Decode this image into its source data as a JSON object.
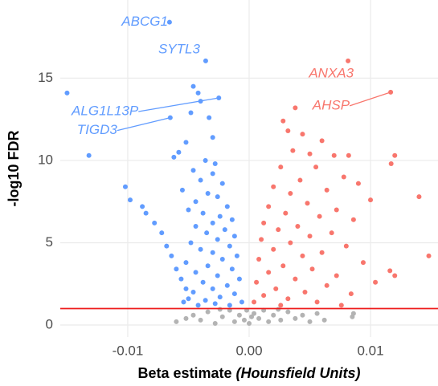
{
  "chart_data": {
    "type": "scatter",
    "xlabel": "Beta estimate",
    "xlabel_unit": "(Hounsfield Units)",
    "ylabel": "-log10 FDR",
    "xlim": [
      -0.01556,
      0.01556
    ],
    "ylim": [
      -0.73,
      19.75
    ],
    "xticks": [
      -0.01,
      {
        "value": 0,
        "label": "0.00"
      },
      0.01
    ],
    "yticks": [
      0,
      5,
      10,
      15
    ],
    "grid": true,
    "hline": 1,
    "hline_color": "#ee1c1c",
    "series": [
      {
        "color": "#619cff",
        "labels": [
          "ABCG1",
          "SYTL3",
          "ALG1L13P",
          "TIGD3"
        ],
        "x": [
          -0.00656,
          -0.00358,
          -0.0025,
          -0.0065
        ],
        "values": [
          18.4,
          16.05,
          13.8,
          12.6
        ]
      },
      {
        "color": "#f8766d",
        "labels": [
          "ANXA3",
          "AHSP"
        ],
        "x": [
          0.00815,
          0.01166
        ],
        "values": [
          16.05,
          14.15
        ]
      },
      {
        "color": "#619cff",
        "x": [
          -0.015,
          -0.0132,
          -0.0102,
          -0.0098,
          -0.0088,
          -0.0085,
          -0.0078,
          -0.0072,
          -0.0068,
          -0.0064,
          -0.006,
          -0.0056,
          -0.0052,
          -0.005,
          -0.0046,
          -0.0042,
          -0.004,
          -0.0048,
          -0.0033,
          -0.003,
          -0.0052,
          -0.0058,
          -0.0062,
          -0.0036,
          -0.0028,
          -0.003,
          -0.0046,
          -0.004,
          -0.0022,
          -0.0055,
          -0.0034,
          -0.0026,
          -0.0044,
          -0.0018,
          -0.005,
          -0.0038,
          -0.0024,
          -0.0014,
          -0.003,
          -0.0044,
          -0.002,
          -0.0035,
          -0.0012,
          -0.0026,
          -0.0048,
          -0.0016,
          -0.004,
          -0.003,
          -0.001,
          -0.0022,
          -0.0052,
          -0.0034,
          -0.0014,
          -0.0044,
          -0.0026,
          -0.0008,
          -0.0038,
          -0.0018,
          -0.003,
          -0.0046,
          -0.0012,
          -0.0024,
          -0.0036,
          -0.0006,
          -0.0016,
          -0.0042,
          -0.0028,
          -0.0054
        ],
        "values": [
          14.1,
          10.3,
          8.4,
          7.6,
          7.2,
          6.8,
          6.2,
          5.6,
          4.8,
          4.2,
          3.4,
          2.8,
          2.2,
          1.6,
          14.5,
          14.1,
          13.6,
          12.9,
          12.6,
          11.4,
          11.1,
          10.5,
          10.2,
          10.0,
          9.8,
          9.2,
          9.4,
          8.8,
          8.6,
          8.2,
          8.0,
          7.8,
          7.5,
          7.2,
          7.0,
          6.8,
          6.6,
          6.4,
          6.2,
          6.0,
          5.8,
          5.6,
          5.4,
          5.2,
          5.0,
          4.8,
          4.6,
          4.4,
          4.2,
          4.0,
          3.8,
          3.6,
          3.4,
          3.2,
          3.0,
          2.8,
          2.6,
          2.4,
          2.2,
          2.0,
          1.9,
          1.7,
          1.5,
          1.4,
          1.2,
          1.2,
          1.3,
          1.4
        ]
      },
      {
        "color": "#f8766d",
        "x": [
          0.0038,
          0.0028,
          0.0032,
          0.0044,
          0.006,
          0.0036,
          0.005,
          0.007,
          0.0082,
          0.012,
          0.0117,
          0.0055,
          0.0026,
          0.0078,
          0.0042,
          0.009,
          0.002,
          0.0064,
          0.0034,
          0.014,
          0.01,
          0.0048,
          0.0016,
          0.0072,
          0.003,
          0.0058,
          0.0086,
          0.0012,
          0.004,
          0.0024,
          0.0068,
          0.005,
          0.001,
          0.0034,
          0.008,
          0.002,
          0.006,
          0.0044,
          0.0008,
          0.0094,
          0.0028,
          0.0052,
          0.0016,
          0.0116,
          0.012,
          0.0072,
          0.0038,
          0.0006,
          0.0064,
          0.0022,
          0.0046,
          0.0084,
          0.0012,
          0.0032,
          0.0056,
          0.0004,
          0.0026,
          0.0076,
          0.0148,
          0.0104
        ],
        "values": [
          13.2,
          12.4,
          11.8,
          11.6,
          11.2,
          10.6,
          10.4,
          10.3,
          10.3,
          10.3,
          9.8,
          9.6,
          9.6,
          9.0,
          8.8,
          8.6,
          8.4,
          8.2,
          8.0,
          7.8,
          7.6,
          7.4,
          7.2,
          7.0,
          6.8,
          6.6,
          6.4,
          6.2,
          6.0,
          5.8,
          5.6,
          5.4,
          5.2,
          5.0,
          4.8,
          4.6,
          4.4,
          4.2,
          4.0,
          3.8,
          3.6,
          3.4,
          3.2,
          3.3,
          3.0,
          3.0,
          2.8,
          2.6,
          2.4,
          2.2,
          2.0,
          1.9,
          1.8,
          1.6,
          1.4,
          1.4,
          1.2,
          1.2,
          4.2,
          2.6
        ]
      },
      {
        "color": "#b3b3b3",
        "x": [
          -0.0046,
          -0.004,
          -0.0034,
          -0.0028,
          -0.0022,
          -0.0016,
          -0.0012,
          -0.0008,
          -0.0004,
          0,
          0.0004,
          0.0008,
          0.0012,
          0.0016,
          0.002,
          0.0026,
          0.0032,
          0.0038,
          0.0044,
          0.005,
          0.0056,
          0.0062,
          0.0085,
          0.0086,
          -0.0052,
          -0.006,
          -0.0024,
          0.0024,
          -0.0002,
          0.0002
        ],
        "values": [
          0.6,
          0.3,
          0.8,
          0.1,
          0.5,
          0.9,
          0.2,
          0.6,
          0.3,
          0.1,
          0.7,
          0.4,
          0.9,
          0.2,
          0.6,
          0.3,
          0.8,
          0.4,
          0.6,
          0.2,
          0.7,
          0.3,
          0.5,
          0.7,
          0.4,
          0.2,
          0.95,
          0.95,
          0.9,
          0.5
        ]
      }
    ]
  }
}
